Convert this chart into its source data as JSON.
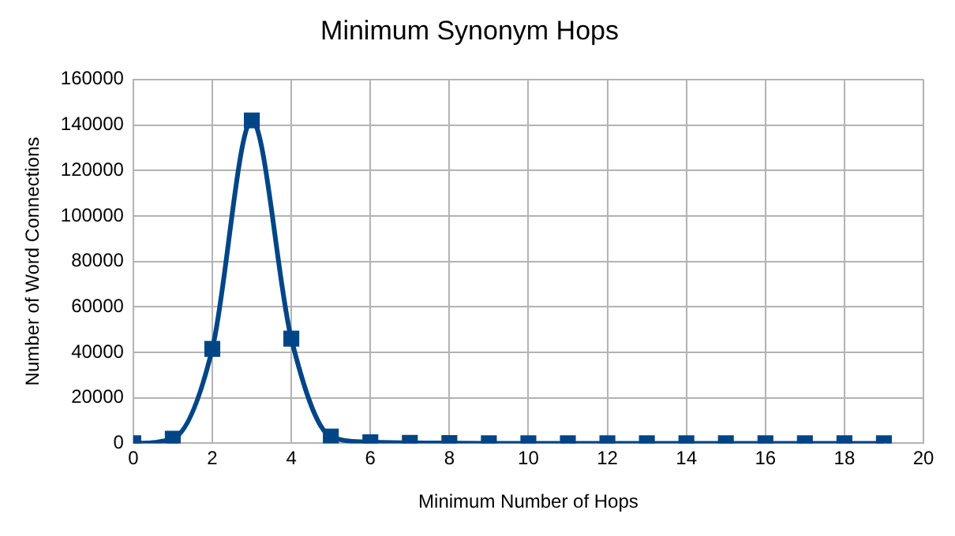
{
  "chart_data": {
    "type": "line",
    "title": "Minimum Synonym Hops",
    "xlabel": "Minimum Number of Hops",
    "ylabel": "Number of Word Connections",
    "x": [
      0,
      1,
      2,
      3,
      4,
      5,
      6,
      7,
      8,
      9,
      10,
      11,
      12,
      13,
      14,
      15,
      16,
      17,
      18,
      19
    ],
    "series": [
      {
        "color": "#004586",
        "values": [
          0,
          2000,
          41500,
          142000,
          46000,
          3000,
          500,
          200,
          100,
          0,
          0,
          0,
          0,
          0,
          0,
          0,
          0,
          0,
          0,
          0
        ]
      }
    ],
    "xlim": [
      0,
      20
    ],
    "xticks": [
      0,
      2,
      4,
      6,
      8,
      10,
      12,
      14,
      16,
      18,
      20
    ],
    "ylim": [
      0,
      160000
    ],
    "yticks": [
      0,
      20000,
      40000,
      60000,
      80000,
      100000,
      120000,
      140000,
      160000
    ],
    "grid": true,
    "legend": false,
    "marker": "square",
    "line_style": "solid"
  }
}
